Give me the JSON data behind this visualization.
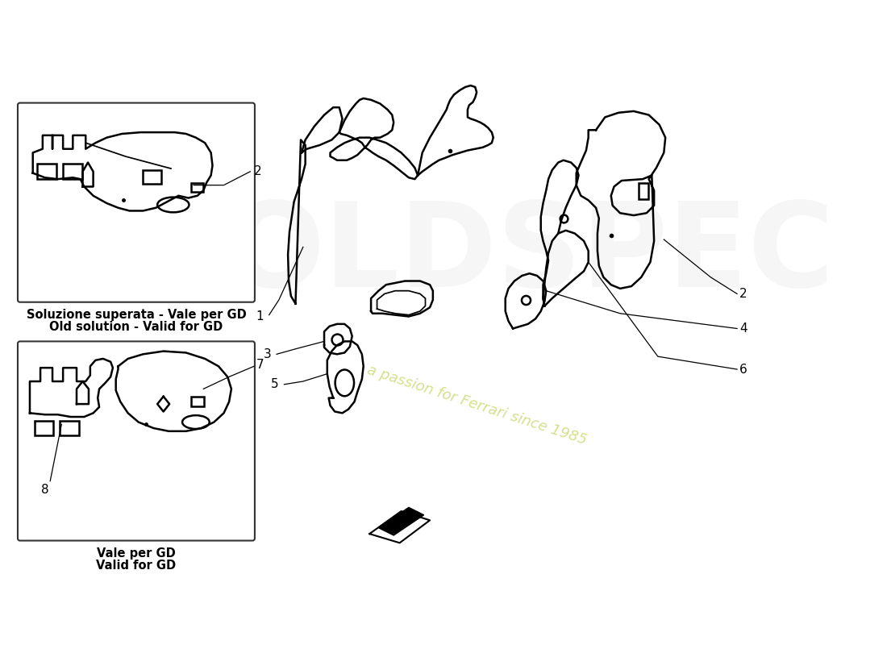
{
  "background_color": "#ffffff",
  "line_color": "#000000",
  "lw": 1.5,
  "box1_label_line1": "Soluzione superata - Vale per GD",
  "box1_label_line2": "Old solution - Valid for GD",
  "box2_label_line1": "Vale per GD",
  "box2_label_line2": "Valid for GD",
  "watermark_text": "a passion for Ferrari since 1985",
  "watermark_color": "#c8d880",
  "font_size_label": 11,
  "font_size_number": 11
}
